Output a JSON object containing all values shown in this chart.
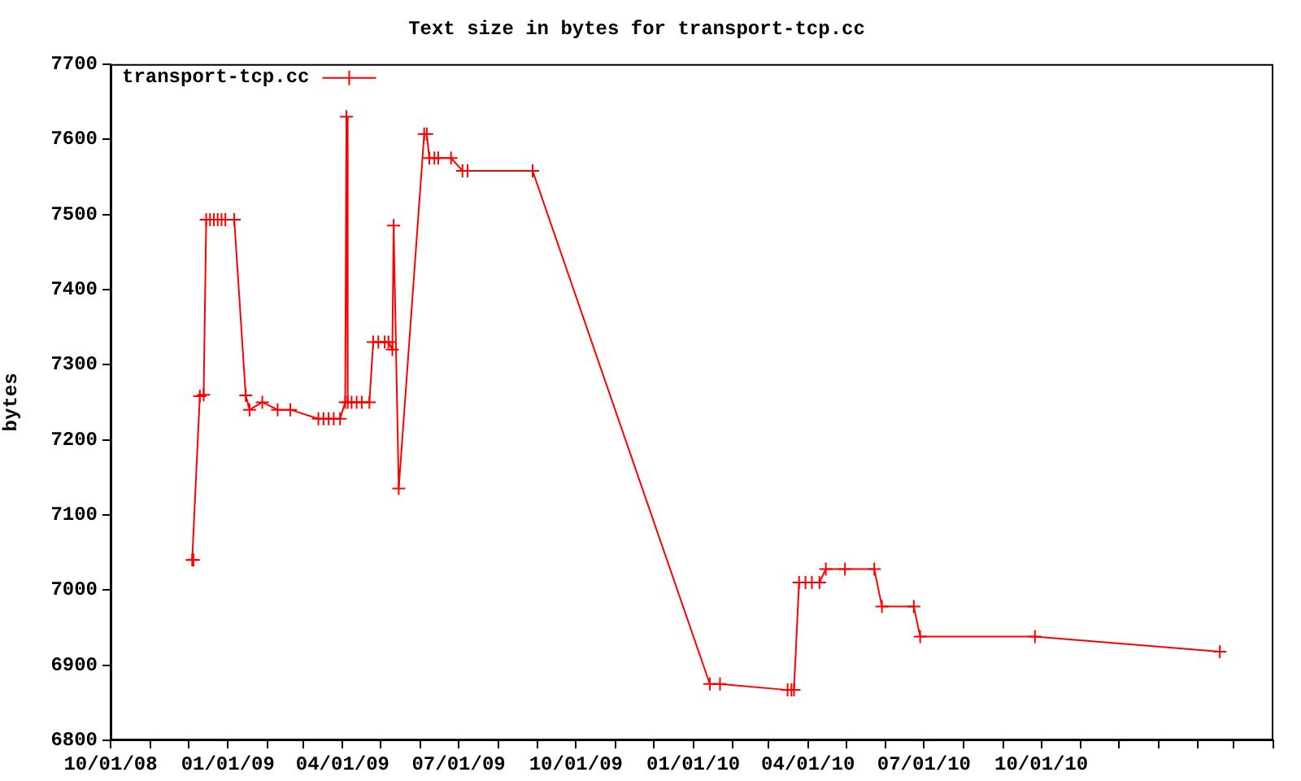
{
  "chart_data": {
    "type": "line",
    "title": "Text size in bytes for transport-tcp.cc",
    "ylabel": "bytes",
    "x": [
      "2008-12-04",
      "2008-12-05",
      "2008-12-10",
      "2008-12-13",
      "2008-12-15",
      "2008-12-18",
      "2008-12-21",
      "2008-12-24",
      "2008-12-27",
      "2008-12-30",
      "2009-01-06",
      "2009-01-15",
      "2009-01-18",
      "2009-01-28",
      "2009-02-09",
      "2009-02-19",
      "2009-03-13",
      "2009-03-17",
      "2009-03-21",
      "2009-03-25",
      "2009-03-30",
      "2009-04-03",
      "2009-04-04",
      "2009-04-05",
      "2009-04-08",
      "2009-04-12",
      "2009-04-16",
      "2009-04-22",
      "2009-04-25",
      "2009-04-29",
      "2009-05-04",
      "2009-05-07",
      "2009-05-10",
      "2009-05-11",
      "2009-05-15",
      "2009-06-04",
      "2009-06-06",
      "2009-06-08",
      "2009-06-12",
      "2009-06-15",
      "2009-06-25",
      "2009-07-04",
      "2009-07-08",
      "2009-08-28",
      "2010-01-14",
      "2010-01-22",
      "2010-03-16",
      "2010-03-19",
      "2010-03-21",
      "2010-03-25",
      "2010-03-30",
      "2010-04-04",
      "2010-04-10",
      "2010-04-15",
      "2010-04-30",
      "2010-05-23",
      "2010-05-29",
      "2010-06-23",
      "2010-06-28",
      "2010-09-26",
      "2011-02-18"
    ],
    "series": [
      {
        "name": "transport-tcp.cc",
        "color": "#ff0000",
        "values": [
          7040,
          7040,
          7258,
          7260,
          7493,
          7493,
          7493,
          7493,
          7493,
          7493,
          7493,
          7259,
          7240,
          7250,
          7240,
          7240,
          7228,
          7228,
          7228,
          7228,
          7228,
          7250,
          7630,
          7250,
          7250,
          7250,
          7250,
          7250,
          7330,
          7330,
          7330,
          7330,
          7320,
          7485,
          7135,
          7607,
          7607,
          7575,
          7575,
          7575,
          7575,
          7558,
          7558,
          7558,
          6875,
          6875,
          6867,
          6867,
          6867,
          7010,
          7010,
          7010,
          7010,
          7028,
          7028,
          7028,
          6978,
          6978,
          6938,
          6938,
          6918
        ]
      }
    ],
    "xlim": [
      "2008-10-01",
      "2011-04-01"
    ],
    "xticks": [
      {
        "value": "2008-10-01",
        "label": "10/01/08"
      },
      {
        "value": "2008-11-01",
        "label": null
      },
      {
        "value": "2008-12-01",
        "label": null
      },
      {
        "value": "2009-01-01",
        "label": "01/01/09"
      },
      {
        "value": "2009-02-01",
        "label": null
      },
      {
        "value": "2009-03-01",
        "label": null
      },
      {
        "value": "2009-04-01",
        "label": "04/01/09"
      },
      {
        "value": "2009-05-01",
        "label": null
      },
      {
        "value": "2009-06-01",
        "label": null
      },
      {
        "value": "2009-07-01",
        "label": "07/01/09"
      },
      {
        "value": "2009-08-01",
        "label": null
      },
      {
        "value": "2009-09-01",
        "label": null
      },
      {
        "value": "2009-10-01",
        "label": "10/01/09"
      },
      {
        "value": "2009-11-01",
        "label": null
      },
      {
        "value": "2009-12-01",
        "label": null
      },
      {
        "value": "2010-01-01",
        "label": "01/01/10"
      },
      {
        "value": "2010-02-01",
        "label": null
      },
      {
        "value": "2010-03-01",
        "label": null
      },
      {
        "value": "2010-04-01",
        "label": "04/01/10"
      },
      {
        "value": "2010-05-01",
        "label": null
      },
      {
        "value": "2010-06-01",
        "label": null
      },
      {
        "value": "2010-07-01",
        "label": "07/01/10"
      },
      {
        "value": "2010-08-01",
        "label": null
      },
      {
        "value": "2010-09-01",
        "label": null
      },
      {
        "value": "2010-10-01",
        "label": "10/01/10"
      },
      {
        "value": "2010-11-01",
        "label": null
      },
      {
        "value": "2010-12-01",
        "label": null
      },
      {
        "value": "2011-01-01",
        "label": null
      },
      {
        "value": "2011-02-01",
        "label": null
      },
      {
        "value": "2011-03-01",
        "label": null
      },
      {
        "value": "2011-04-01",
        "label": null
      }
    ],
    "ylim": [
      6800,
      7700
    ],
    "yticks": [
      6800,
      6900,
      7000,
      7100,
      7200,
      7300,
      7400,
      7500,
      7600,
      7700
    ],
    "grid": false,
    "legend": "top left",
    "marker": "cross",
    "line_style": "solid"
  }
}
